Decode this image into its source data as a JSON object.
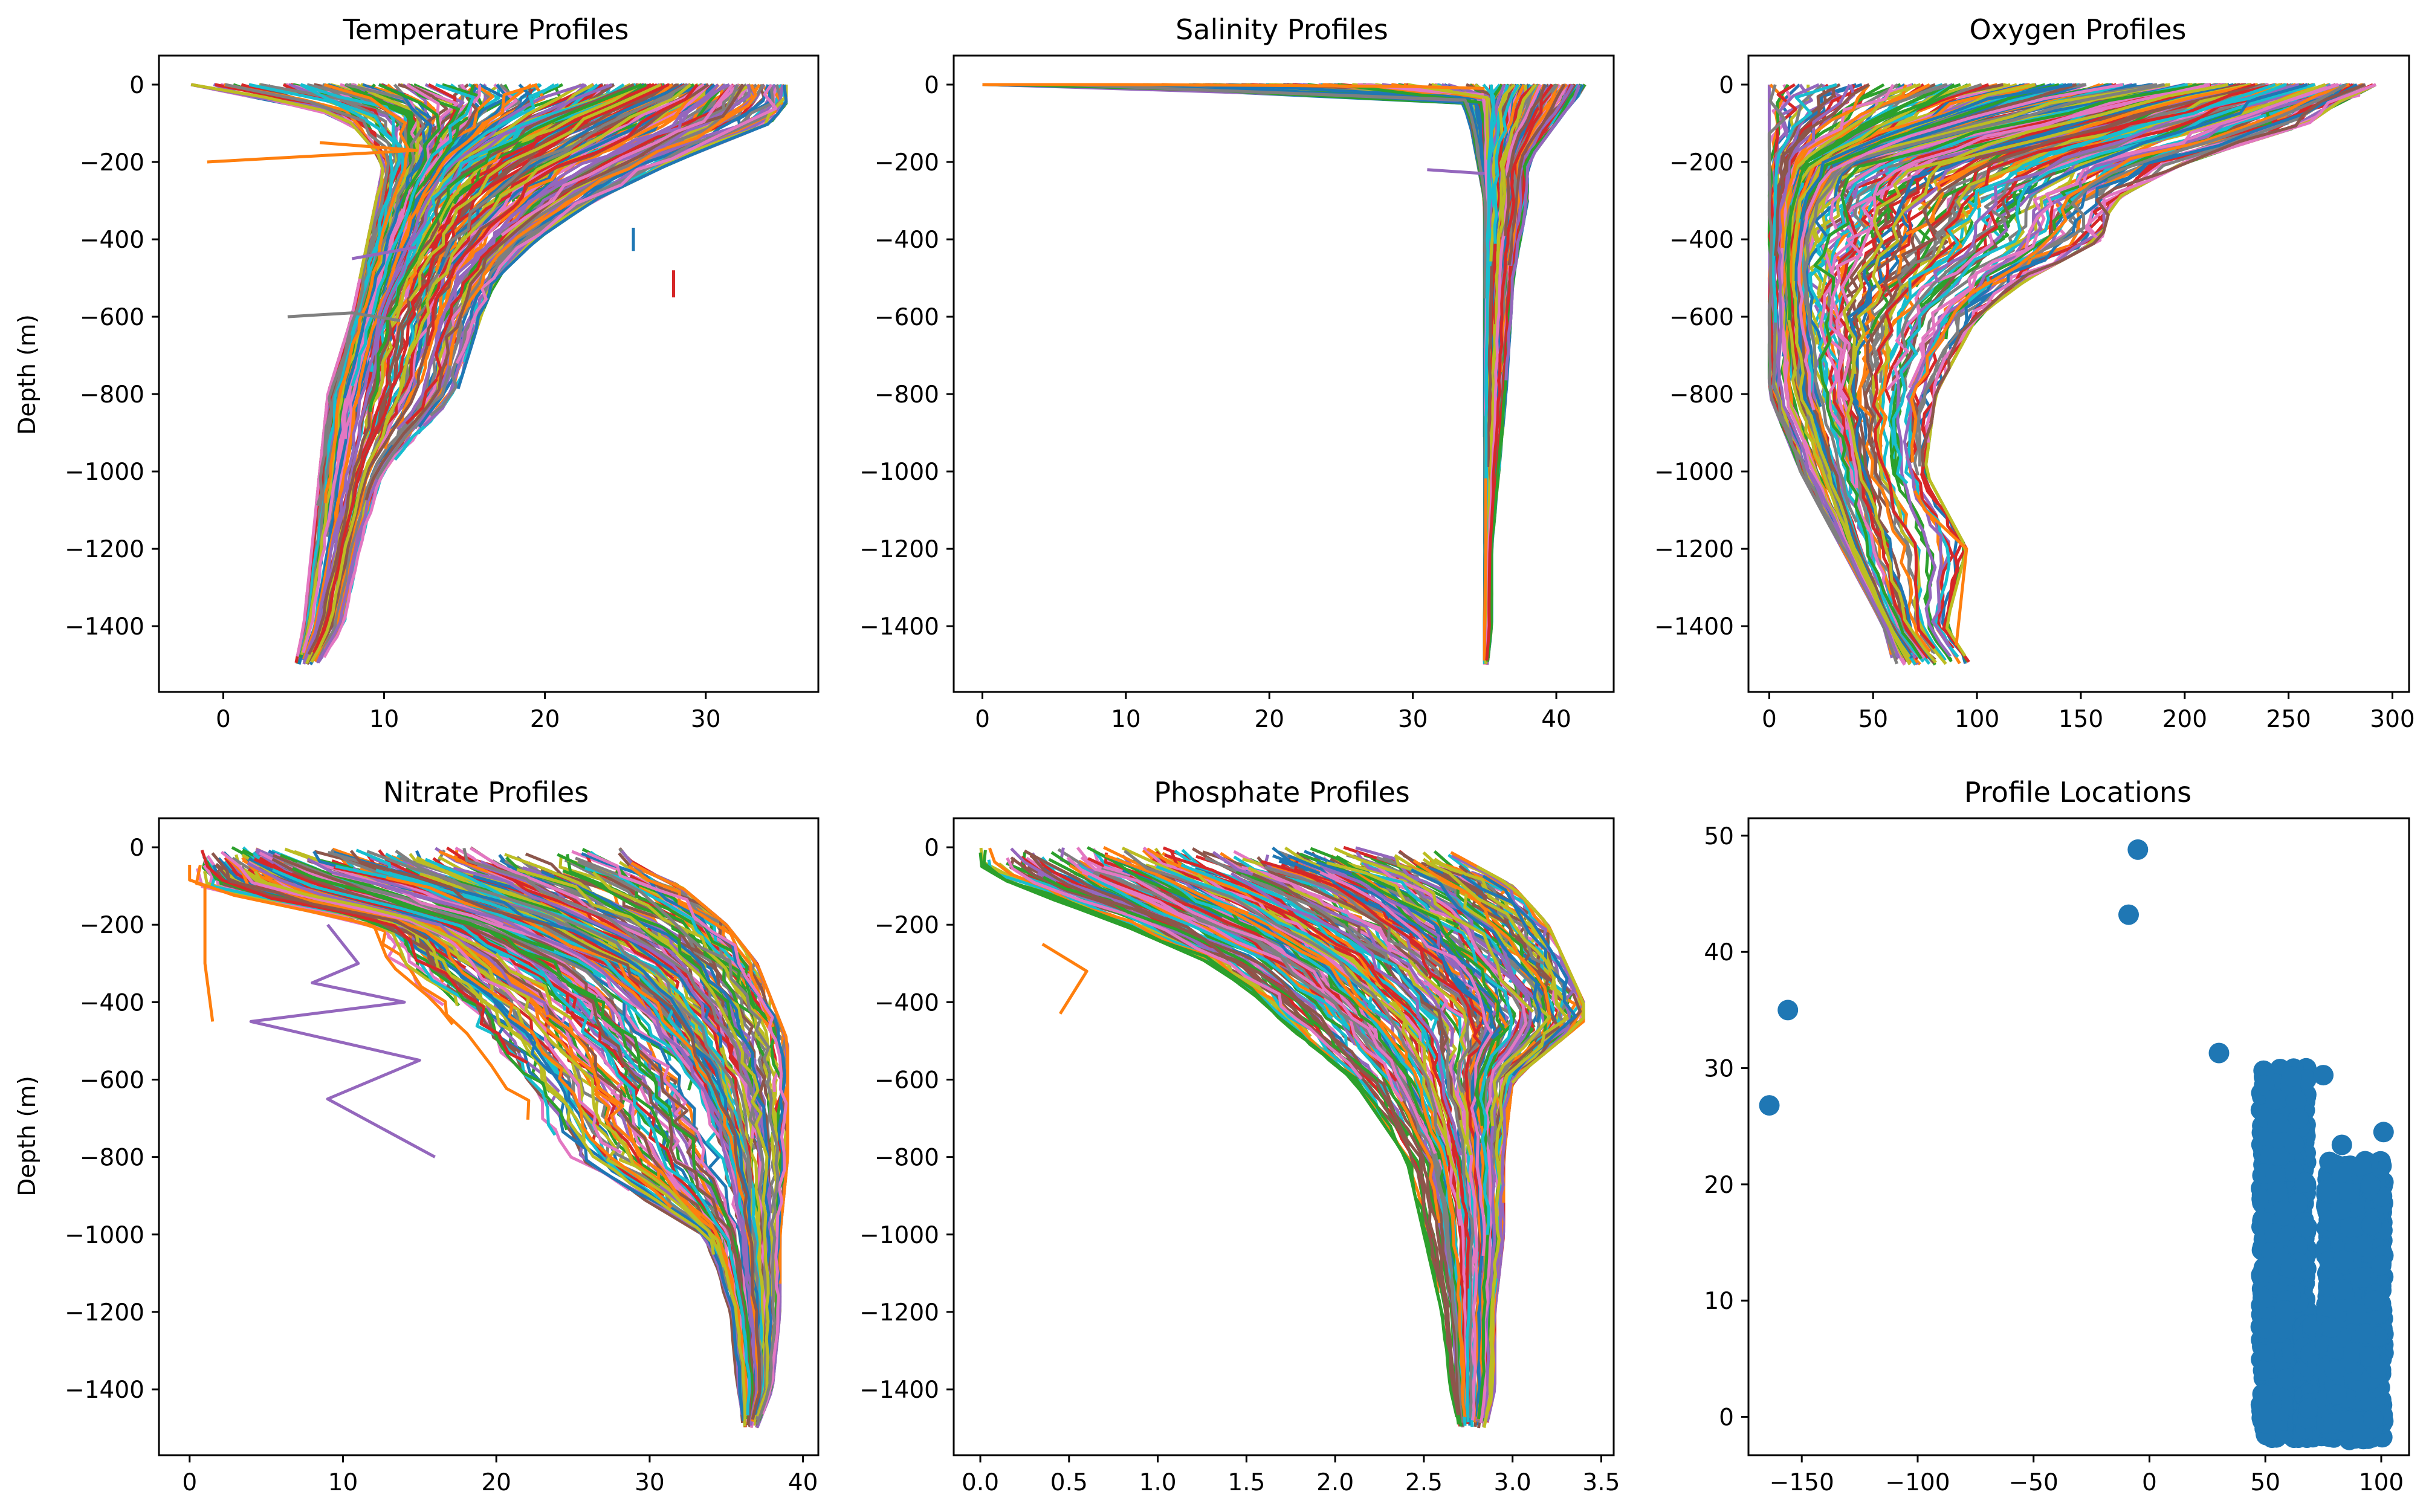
{
  "colors": {
    "cycle": [
      "#1f77b4",
      "#ff7f0e",
      "#2ca02c",
      "#d62728",
      "#9467bd",
      "#8c564b",
      "#e377c2",
      "#7f7f7f",
      "#bcbd22",
      "#17becf"
    ],
    "marker": "#1f77b4"
  },
  "chart_data": [
    {
      "type": "line",
      "title": "Temperature Profiles",
      "xlabel": "",
      "ylabel": "Depth (m)",
      "xlim": [
        -4,
        37
      ],
      "ylim": [
        -1570,
        75
      ],
      "xticks": [
        0,
        10,
        20,
        30
      ],
      "yticks": [
        0,
        -200,
        -400,
        -600,
        -800,
        -1000,
        -1200,
        -1400
      ],
      "series_count": "hundreds (many overlapping profiles, 10-color cycle)",
      "envelope": {
        "depth": [
          0,
          -20,
          -50,
          -100,
          -200,
          -300,
          -400,
          -500,
          -600,
          -800,
          -1000,
          -1200,
          -1400,
          -1500
        ],
        "min": [
          -2,
          0,
          5,
          8,
          10,
          9.5,
          9,
          8.5,
          8,
          6.5,
          6,
          5.5,
          5,
          4.5
        ],
        "max": [
          35,
          35,
          35,
          34,
          28,
          23,
          19.5,
          17,
          16,
          14.5,
          10,
          8.5,
          7.5,
          6
        ],
        "median": [
          25,
          24,
          22,
          19,
          15,
          13,
          12,
          11,
          10,
          9,
          8,
          7,
          6,
          5
        ]
      },
      "outliers": [
        {
          "x": [
            -1,
            12,
            6
          ],
          "y": [
            -200,
            -170,
            -150
          ]
        },
        {
          "x": [
            8,
            12
          ],
          "y": [
            -450,
            -420
          ]
        },
        {
          "x": [
            4,
            8,
            11
          ],
          "y": [
            -600,
            -590,
            -610
          ]
        },
        {
          "x": [
            25.5,
            25.5
          ],
          "y": [
            -370,
            -430
          ]
        },
        {
          "x": [
            28,
            28
          ],
          "y": [
            -480,
            -550
          ]
        }
      ]
    },
    {
      "type": "line",
      "title": "Salinity Profiles",
      "xlabel": "",
      "ylabel": "",
      "xlim": [
        -2,
        44
      ],
      "ylim": [
        -1570,
        75
      ],
      "xticks": [
        0,
        10,
        20,
        30,
        40
      ],
      "yticks": [
        0,
        -200,
        -400,
        -600,
        -800,
        -1000,
        -1200,
        -1400
      ],
      "series_count": "hundreds (many overlapping profiles, 10-color cycle)",
      "envelope": {
        "depth": [
          0,
          -10,
          -50,
          -100,
          -200,
          -300,
          -400,
          -500,
          -800,
          -1000,
          -1200,
          -1400,
          -1500
        ],
        "min": [
          0,
          33,
          33.5,
          34,
          34.5,
          35,
          35,
          35,
          35,
          35,
          35,
          35,
          35
        ],
        "max": [
          42,
          42,
          41,
          40,
          38,
          38,
          37.5,
          37,
          36.5,
          36,
          35.5,
          35.5,
          35.2
        ],
        "median": [
          36,
          35.5,
          35.5,
          35.5,
          35.3,
          35.3,
          35.2,
          35.2,
          35.1,
          35.1,
          35.1,
          35,
          35
        ]
      },
      "outliers": [
        {
          "x": [
            0,
            10,
            20,
            30,
            35
          ],
          "y": [
            0,
            0,
            -2,
            -5,
            -10
          ]
        },
        {
          "x": [
            31,
            35
          ],
          "y": [
            -220,
            -230
          ]
        }
      ]
    },
    {
      "type": "line",
      "title": "Oxygen Profiles",
      "xlabel": "",
      "ylabel": "",
      "xlim": [
        -10,
        308
      ],
      "ylim": [
        -1570,
        75
      ],
      "xticks": [
        0,
        50,
        100,
        150,
        200,
        250,
        300
      ],
      "yticks": [
        0,
        -200,
        -400,
        -600,
        -800,
        -1000,
        -1200,
        -1400
      ],
      "series_count": "hundreds (many overlapping profiles, 10-color cycle)",
      "envelope": {
        "depth": [
          0,
          -20,
          -50,
          -100,
          -200,
          -300,
          -400,
          -500,
          -600,
          -800,
          -1000,
          -1200,
          -1400,
          -1500
        ],
        "min": [
          0,
          0,
          0,
          0,
          0,
          0,
          0,
          0,
          0,
          0,
          15,
          35,
          55,
          60
        ],
        "max": [
          292,
          290,
          270,
          260,
          200,
          165,
          160,
          125,
          100,
          80,
          75,
          95,
          85,
          97
        ],
        "median": [
          200,
          180,
          150,
          110,
          40,
          25,
          20,
          18,
          20,
          25,
          35,
          45,
          60,
          75
        ]
      },
      "outliers": [
        {
          "x": [
            70,
            75,
            95,
            90
          ],
          "y": [
            -1050,
            -1100,
            -1200,
            -1450
          ]
        }
      ]
    },
    {
      "type": "line",
      "title": "Nitrate Profiles",
      "xlabel": "",
      "ylabel": "Depth (m)",
      "xlim": [
        -2,
        41
      ],
      "ylim": [
        -1570,
        75
      ],
      "xticks": [
        0,
        10,
        20,
        30,
        40
      ],
      "yticks": [
        0,
        -200,
        -400,
        -600,
        -800,
        -1000,
        -1200,
        -1400
      ],
      "series_count": "hundreds (many overlapping profiles, 10-color cycle)",
      "envelope": {
        "depth": [
          0,
          -50,
          -100,
          -200,
          -300,
          -400,
          -500,
          -600,
          -800,
          -1000,
          -1200,
          -1400,
          -1500
        ],
        "min": [
          0,
          0,
          0,
          12,
          13,
          16,
          18,
          20,
          23,
          33,
          35,
          35.5,
          36
        ],
        "max": [
          28,
          29,
          32,
          35,
          37,
          38,
          39,
          39,
          39,
          38.5,
          38.5,
          38,
          37
        ],
        "median": [
          5,
          8,
          12,
          20,
          26,
          29,
          31,
          33,
          35,
          36,
          36.5,
          37,
          36.5
        ]
      },
      "outliers": [
        {
          "x": [
            1,
            1,
            1.5
          ],
          "y": [
            -100,
            -300,
            -450
          ]
        },
        {
          "x": [
            9,
            11,
            8,
            14,
            4,
            15,
            9,
            16
          ],
          "y": [
            -200,
            -300,
            -350,
            -400,
            -450,
            -550,
            -650,
            -800
          ]
        }
      ]
    },
    {
      "type": "line",
      "title": "Phosphate Profiles",
      "xlabel": "",
      "ylabel": "",
      "xlim": [
        -0.15,
        3.57
      ],
      "ylim": [
        -1570,
        75
      ],
      "xticks": [
        0.0,
        0.5,
        1.0,
        1.5,
        2.0,
        2.5,
        3.0,
        3.5
      ],
      "yticks": [
        0,
        -200,
        -400,
        -600,
        -800,
        -1000,
        -1200,
        -1400
      ],
      "series_count": "hundreds (many overlapping profiles, 10-color cycle)",
      "envelope": {
        "depth": [
          0,
          -50,
          -100,
          -200,
          -300,
          -400,
          -450,
          -600,
          -800,
          -1000,
          -1200,
          -1400,
          -1500
        ],
        "min": [
          0,
          0,
          0.2,
          0.8,
          1.3,
          1.6,
          1.7,
          2.1,
          2.4,
          2.5,
          2.6,
          2.65,
          2.7
        ],
        "max": [
          2.6,
          2.8,
          3.0,
          3.2,
          3.3,
          3.4,
          3.4,
          3.0,
          2.95,
          2.95,
          2.9,
          2.9,
          2.85
        ],
        "median": [
          1.0,
          1.2,
          1.5,
          1.9,
          2.2,
          2.4,
          2.5,
          2.6,
          2.7,
          2.75,
          2.75,
          2.75,
          2.75
        ]
      },
      "outliers": [
        {
          "x": [
            0.35,
            0.6,
            0.45
          ],
          "y": [
            -250,
            -320,
            -430
          ]
        }
      ]
    },
    {
      "type": "scatter",
      "title": "Profile Locations",
      "xlabel": "",
      "ylabel": "",
      "xlim": [
        -173,
        112
      ],
      "ylim": [
        -3.3,
        51.5
      ],
      "xticks": [
        -150,
        -100,
        -50,
        0,
        50,
        100
      ],
      "yticks": [
        0,
        10,
        20,
        30,
        40,
        50
      ],
      "points": [
        {
          "x": -164,
          "y": 26.8
        },
        {
          "x": -156,
          "y": 35
        },
        {
          "x": -9,
          "y": 43.2
        },
        {
          "x": -5,
          "y": 48.8
        },
        {
          "x": 30,
          "y": 31.3
        },
        {
          "x": 75,
          "y": 29.4
        },
        {
          "x": 83,
          "y": 23.4
        },
        {
          "x": 101,
          "y": 24.5
        }
      ],
      "dense_regions": [
        {
          "x_range": [
            48,
            68
          ],
          "y_range": [
            -1.8,
            30
          ]
        },
        {
          "x_range": [
            66,
            80
          ],
          "y_range": [
            -1.8,
            8
          ]
        },
        {
          "x_range": [
            76,
            101
          ],
          "y_range": [
            -2,
            22
          ]
        }
      ]
    }
  ]
}
